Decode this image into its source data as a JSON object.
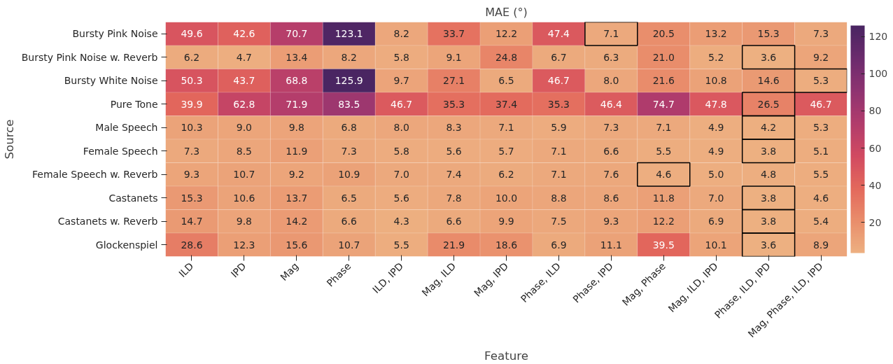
{
  "chart_data": {
    "type": "heatmap",
    "title": "MAE (°)",
    "xlabel": "Feature",
    "ylabel": "Source",
    "clim": [
      3.6,
      125.9
    ],
    "cticks": [
      20,
      40,
      60,
      80,
      100,
      120
    ],
    "categories": [
      "ILD",
      "IPD",
      "Mag",
      "Phase",
      "ILD, IPD",
      "Mag, ILD",
      "Mag, IPD",
      "Phase, ILD",
      "Phase, IPD",
      "Mag, Phase",
      "Mag, ILD, IPD",
      "Phase, ILD, IPD",
      "Mag, Phase, ILD, IPD"
    ],
    "y_categories": [
      "Bursty Pink Noise",
      "Bursty Pink Noise w. Reverb",
      "Bursty White Noise",
      "Pure Tone",
      "Male Speech",
      "Female Speech",
      "Female Speech w. Reverb",
      "Castanets",
      "Castanets w. Reverb",
      "Glockenspiel"
    ],
    "cells": [
      [
        49.6,
        42.6,
        70.7,
        123.1,
        8.2,
        33.7,
        12.2,
        47.4,
        7.1,
        20.5,
        13.2,
        15.3,
        7.3
      ],
      [
        6.2,
        4.7,
        13.4,
        8.2,
        5.8,
        9.1,
        24.8,
        6.7,
        6.3,
        21.0,
        5.2,
        3.6,
        9.2
      ],
      [
        50.3,
        43.7,
        68.8,
        125.9,
        9.7,
        27.1,
        6.5,
        46.7,
        8.0,
        21.6,
        10.8,
        14.6,
        5.3
      ],
      [
        39.9,
        62.8,
        71.9,
        83.5,
        46.7,
        35.3,
        37.4,
        35.3,
        46.4,
        74.7,
        47.8,
        26.5,
        46.7
      ],
      [
        10.3,
        9.0,
        9.8,
        6.8,
        8.0,
        8.3,
        7.1,
        5.9,
        7.3,
        7.1,
        4.9,
        4.2,
        5.3
      ],
      [
        7.3,
        8.5,
        11.9,
        7.3,
        5.8,
        5.6,
        5.7,
        7.1,
        6.6,
        5.5,
        4.9,
        3.8,
        5.1
      ],
      [
        9.3,
        10.7,
        9.2,
        10.9,
        7.0,
        7.4,
        6.2,
        7.1,
        7.6,
        4.6,
        5.0,
        4.8,
        5.5
      ],
      [
        15.3,
        10.6,
        13.7,
        6.5,
        5.6,
        7.8,
        10.0,
        8.8,
        8.6,
        11.8,
        7.0,
        3.8,
        4.6
      ],
      [
        14.7,
        9.8,
        14.2,
        6.6,
        4.3,
        6.6,
        9.9,
        7.5,
        9.3,
        12.2,
        6.9,
        3.8,
        5.4
      ],
      [
        28.6,
        12.3,
        15.6,
        10.7,
        5.5,
        21.9,
        18.6,
        6.9,
        11.1,
        39.5,
        10.1,
        3.6,
        8.9
      ]
    ],
    "cell_labels": [
      [
        "49.6",
        "42.6",
        "70.7",
        "123.1",
        "8.2",
        "33.7",
        "12.2",
        "47.4",
        "7.1",
        "20.5",
        "13.2",
        "15.3",
        "7.3"
      ],
      [
        "6.2",
        "4.7",
        "13.4",
        "8.2",
        "5.8",
        "9.1",
        "24.8",
        "6.7",
        "6.3",
        "21.0",
        "5.2",
        "3.6",
        "9.2"
      ],
      [
        "50.3",
        "43.7",
        "68.8",
        "125.9",
        "9.7",
        "27.1",
        "6.5",
        "46.7",
        "8.0",
        "21.6",
        "10.8",
        "14.6",
        "5.3"
      ],
      [
        "39.9",
        "62.8",
        "71.9",
        "83.5",
        "46.7",
        "35.3",
        "37.4",
        "35.3",
        "46.4",
        "74.7",
        "47.8",
        "26.5",
        "46.7"
      ],
      [
        "10.3",
        "9.0",
        "9.8",
        "6.8",
        "8.0",
        "8.3",
        "7.1",
        "5.9",
        "7.3",
        "7.1",
        "4.9",
        "4.2",
        "5.3"
      ],
      [
        "7.3",
        "8.5",
        "11.9",
        "7.3",
        "5.8",
        "5.6",
        "5.7",
        "7.1",
        "6.6",
        "5.5",
        "4.9",
        "3.8",
        "5.1"
      ],
      [
        "9.3",
        "10.7",
        "9.2",
        "10.9",
        "7.0",
        "7.4",
        "6.2",
        "7.1",
        "7.6",
        "4.6",
        "5.0",
        "4.8",
        "5.5"
      ],
      [
        "15.3",
        "10.6",
        "13.7",
        "6.5",
        "5.6",
        "7.8",
        "10.0",
        "8.8",
        "8.6",
        "11.8",
        "7.0",
        "3.8",
        "4.6"
      ],
      [
        "14.7",
        "9.8",
        "14.2",
        "6.6",
        "4.3",
        "6.6",
        "9.9",
        "7.5",
        "9.3",
        "12.2",
        "6.9",
        "3.8",
        "5.4"
      ],
      [
        "28.6",
        "12.3",
        "15.6",
        "10.7",
        "5.5",
        "21.9",
        "18.6",
        "6.9",
        "11.1",
        "39.5",
        "10.1",
        "3.6",
        "8.9"
      ]
    ]
  }
}
